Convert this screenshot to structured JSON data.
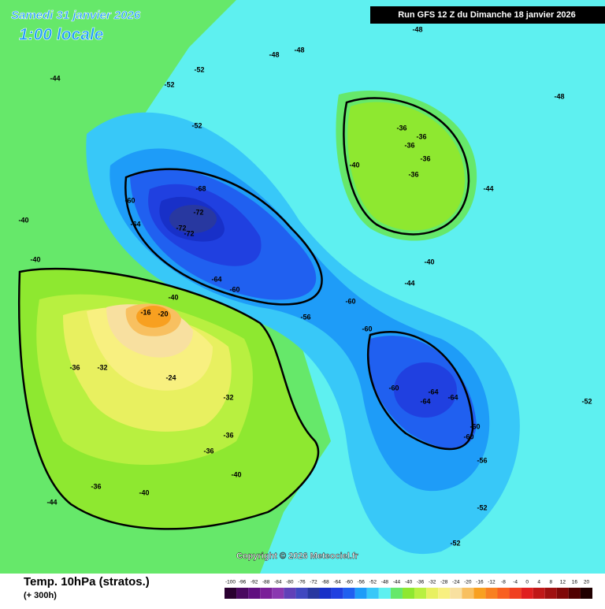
{
  "header": {
    "date": "Samedi 31 janvier 2026",
    "time": "1:00 locale",
    "run": "Run GFS 12 Z du Dimanche 18 janvier 2026"
  },
  "footer": {
    "title": "Temp. 10hPa (stratos.)",
    "lead": "(+ 300h)",
    "copyright": "Copyright © 2026 Meteociel.fr"
  },
  "scale": {
    "ticks": [
      -100,
      -96,
      -92,
      -88,
      -84,
      -80,
      -76,
      -72,
      -68,
      -64,
      -60,
      -56,
      -52,
      -48,
      -44,
      -40,
      -36,
      -32,
      -28,
      -24,
      -20,
      -16,
      -12,
      -8,
      -4,
      0,
      4,
      8,
      12,
      16,
      20
    ],
    "colors": [
      "#2a0030",
      "#4a0860",
      "#601080",
      "#7a2098",
      "#8a38b0",
      "#6040b8",
      "#4048c0",
      "#2838a0",
      "#1830c8",
      "#2040e0",
      "#2060f0",
      "#1e9cf8",
      "#38c8f8",
      "#5ef0f0",
      "#66e86a",
      "#8ee830",
      "#b8f040",
      "#e8f060",
      "#f8f080",
      "#f8e0a0",
      "#f8c060",
      "#f8a020",
      "#f88020",
      "#f86020",
      "#f04020",
      "#e02020",
      "#c01818",
      "#a01010",
      "#800808",
      "#500000",
      "#200000"
    ]
  },
  "contour_labels": [
    -68,
    -72,
    -72,
    -72,
    -60,
    -64,
    -64,
    -60,
    -60,
    -60,
    -60,
    -64,
    -64,
    -64,
    -60,
    -60,
    -16,
    -20,
    -40,
    -32,
    -36,
    -24,
    -32,
    -36,
    -36,
    -40,
    -36,
    -40,
    -36,
    -36,
    -36,
    -36,
    -36,
    -40,
    -40,
    -44,
    -48,
    -48,
    -48,
    -48,
    -52,
    -52,
    -52,
    -56,
    -52,
    -52,
    -44,
    -40,
    -40,
    -56,
    -52,
    -44,
    -44
  ]
}
